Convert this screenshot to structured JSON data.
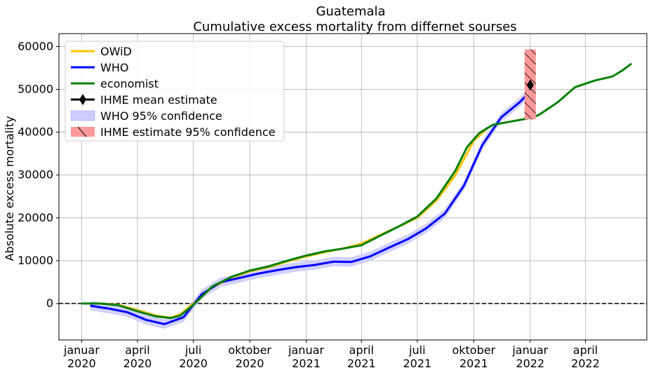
{
  "chart_data": {
    "type": "line",
    "title": "Guatemala",
    "subtitle": "Cumulative excess mortality from differnet sourses",
    "xlabel": "",
    "ylabel": "Absolute excess mortality",
    "x_ticks": [
      {
        "date": "2020-01-01",
        "line1": "januar",
        "line2": "2020"
      },
      {
        "date": "2020-04-01",
        "line1": "april",
        "line2": "2020"
      },
      {
        "date": "2020-07-01",
        "line1": "juli",
        "line2": "2020"
      },
      {
        "date": "2020-10-01",
        "line1": "oktober",
        "line2": "2020"
      },
      {
        "date": "2021-01-01",
        "line1": "januar",
        "line2": "2021"
      },
      {
        "date": "2021-04-01",
        "line1": "april",
        "line2": "2021"
      },
      {
        "date": "2021-07-01",
        "line1": "juli",
        "line2": "2021"
      },
      {
        "date": "2021-10-01",
        "line1": "oktober",
        "line2": "2021"
      },
      {
        "date": "2022-01-01",
        "line1": "januar",
        "line2": "2022"
      },
      {
        "date": "2022-04-01",
        "line1": "april",
        "line2": "2022"
      }
    ],
    "y_ticks": [
      0,
      10000,
      20000,
      30000,
      40000,
      50000,
      60000
    ],
    "xlim": [
      "2019-11-25",
      "2022-07-10"
    ],
    "ylim": [
      -8500,
      63000
    ],
    "grid": true,
    "legend_position": "top-left",
    "reference_line": {
      "y": 0,
      "style": "dashed",
      "color": "#000000"
    },
    "series": [
      {
        "name": "OWiD",
        "color": "#ffc000",
        "points": [
          [
            "2020-01-01",
            0
          ],
          [
            "2020-02-01",
            0
          ],
          [
            "2020-03-01",
            -300
          ],
          [
            "2020-04-01",
            -1500
          ],
          [
            "2020-05-01",
            -2800
          ],
          [
            "2020-05-25",
            -3300
          ],
          [
            "2020-06-10",
            -2500
          ],
          [
            "2020-07-01",
            0
          ],
          [
            "2020-08-01",
            3800
          ],
          [
            "2020-09-01",
            6000
          ],
          [
            "2020-10-01",
            7500
          ],
          [
            "2020-11-01",
            8500
          ],
          [
            "2020-12-01",
            9800
          ],
          [
            "2021-01-01",
            11000
          ],
          [
            "2021-02-01",
            12000
          ],
          [
            "2021-03-01",
            12800
          ],
          [
            "2021-04-01",
            14000
          ],
          [
            "2021-05-01",
            16000
          ],
          [
            "2021-06-01",
            18000
          ],
          [
            "2021-07-01",
            20000
          ],
          [
            "2021-08-01",
            24000
          ],
          [
            "2021-09-01",
            30000
          ],
          [
            "2021-09-20",
            35000
          ],
          [
            "2021-10-01",
            38000
          ],
          [
            "2021-10-20",
            40500
          ]
        ]
      },
      {
        "name": "WHO",
        "color": "#0000ff",
        "points": [
          [
            "2020-01-15",
            -500
          ],
          [
            "2020-02-15",
            -1200
          ],
          [
            "2020-03-15",
            -2000
          ],
          [
            "2020-04-15",
            -3800
          ],
          [
            "2020-05-15",
            -4800
          ],
          [
            "2020-06-15",
            -3200
          ],
          [
            "2020-07-15",
            2200
          ],
          [
            "2020-08-15",
            5000
          ],
          [
            "2020-09-15",
            6000
          ],
          [
            "2020-10-15",
            7000
          ],
          [
            "2020-11-15",
            7800
          ],
          [
            "2020-12-15",
            8500
          ],
          [
            "2021-01-15",
            9000
          ],
          [
            "2021-02-15",
            9800
          ],
          [
            "2021-03-15",
            9700
          ],
          [
            "2021-04-15",
            11000
          ],
          [
            "2021-05-15",
            13000
          ],
          [
            "2021-06-15",
            15000
          ],
          [
            "2021-07-15",
            17500
          ],
          [
            "2021-08-15",
            21000
          ],
          [
            "2021-09-15",
            27500
          ],
          [
            "2021-10-15",
            37000
          ],
          [
            "2021-11-15",
            43500
          ],
          [
            "2021-12-15",
            47000
          ],
          [
            "2022-01-01",
            49500
          ]
        ],
        "band_halfwidth": 1100
      },
      {
        "name": "economist",
        "color": "#008000",
        "points": [
          [
            "2020-01-01",
            0
          ],
          [
            "2020-02-01",
            0
          ],
          [
            "2020-03-01",
            -400
          ],
          [
            "2020-04-01",
            -1800
          ],
          [
            "2020-05-01",
            -3000
          ],
          [
            "2020-05-25",
            -3400
          ],
          [
            "2020-06-10",
            -2800
          ],
          [
            "2020-07-01",
            -300
          ],
          [
            "2020-08-01",
            4000
          ],
          [
            "2020-09-01",
            6200
          ],
          [
            "2020-10-01",
            7700
          ],
          [
            "2020-11-01",
            8700
          ],
          [
            "2020-12-01",
            10000
          ],
          [
            "2021-01-01",
            11200
          ],
          [
            "2021-02-01",
            12200
          ],
          [
            "2021-03-01",
            12800
          ],
          [
            "2021-04-01",
            13600
          ],
          [
            "2021-05-01",
            15800
          ],
          [
            "2021-06-01",
            18000
          ],
          [
            "2021-07-01",
            20300
          ],
          [
            "2021-08-01",
            24500
          ],
          [
            "2021-09-01",
            31000
          ],
          [
            "2021-09-20",
            36500
          ],
          [
            "2021-10-10",
            39800
          ],
          [
            "2021-11-01",
            41700
          ],
          [
            "2021-12-01",
            42500
          ],
          [
            "2022-01-01",
            43300
          ],
          [
            "2022-01-15",
            44000
          ],
          [
            "2022-02-15",
            47000
          ],
          [
            "2022-03-15",
            50500
          ],
          [
            "2022-04-15",
            52000
          ],
          [
            "2022-05-15",
            53000
          ],
          [
            "2022-06-01",
            54500
          ],
          [
            "2022-06-15",
            56000
          ]
        ]
      }
    ],
    "ihme": {
      "name": "IHME mean estimate",
      "date": "2022-01-01",
      "value": 51000,
      "ci_name": " IHME estimate 95% confidence",
      "ci_low": 43000,
      "ci_high": 59300,
      "color": "#000000",
      "ci_color": "#ff9999"
    },
    "who_band_name": "WHO 95% confidence",
    "who_band_color": "#ccccff"
  }
}
